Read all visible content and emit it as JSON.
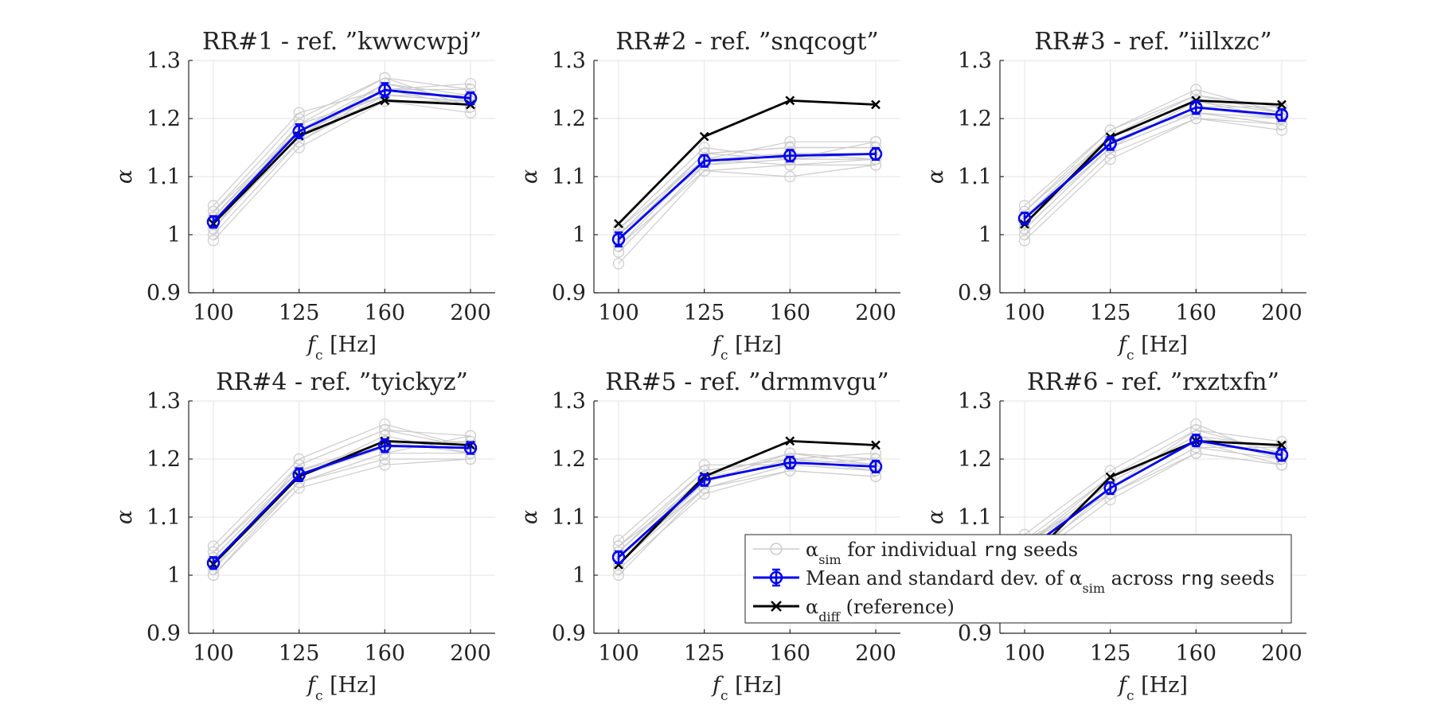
{
  "chart_data": [
    {
      "type": "line",
      "title": "RR#1 - ref. ”kwwcwpj”",
      "xlabel_var": "f",
      "xlabel_sub": "c",
      "xlabel_unit": " [Hz]",
      "ylabel": "α",
      "x": [
        100,
        125,
        160,
        200
      ],
      "ylim": [
        0.9,
        1.3
      ],
      "yticks": [
        "0.9",
        "1",
        "1.1",
        "1.2",
        "1.3"
      ],
      "xticks": [
        "100",
        "125",
        "160",
        "200"
      ],
      "mean": [
        1.022,
        1.178,
        1.249,
        1.235
      ],
      "std": [
        0.01,
        0.012,
        0.012,
        0.01
      ],
      "reference": [
        1.019,
        1.17,
        1.231,
        1.224
      ],
      "seeds": [
        [
          1.0,
          1.16,
          1.24,
          1.23
        ],
        [
          1.01,
          1.17,
          1.25,
          1.22
        ],
        [
          1.02,
          1.18,
          1.26,
          1.24
        ],
        [
          1.03,
          1.19,
          1.24,
          1.23
        ],
        [
          1.04,
          1.2,
          1.27,
          1.25
        ],
        [
          1.05,
          1.21,
          1.25,
          1.26
        ],
        [
          0.99,
          1.15,
          1.23,
          1.21
        ],
        [
          1.02,
          1.17,
          1.26,
          1.23
        ],
        [
          1.03,
          1.18,
          1.24,
          1.24
        ],
        [
          1.01,
          1.19,
          1.27,
          1.22
        ],
        [
          1.02,
          1.16,
          1.25,
          1.25
        ],
        [
          1.04,
          1.18,
          1.23,
          1.23
        ]
      ]
    },
    {
      "type": "line",
      "title": "RR#2 - ref. ”snqcogt”",
      "xlabel_var": "f",
      "xlabel_sub": "c",
      "xlabel_unit": " [Hz]",
      "ylabel": "α",
      "x": [
        100,
        125,
        160,
        200
      ],
      "ylim": [
        0.9,
        1.3
      ],
      "yticks": [
        "0.9",
        "1",
        "1.1",
        "1.2",
        "1.3"
      ],
      "xticks": [
        "100",
        "125",
        "160",
        "200"
      ],
      "mean": [
        0.992,
        1.127,
        1.136,
        1.139
      ],
      "std": [
        0.012,
        0.01,
        0.01,
        0.01
      ],
      "reference": [
        1.019,
        1.169,
        1.231,
        1.224
      ],
      "seeds": [
        [
          0.95,
          1.11,
          1.1,
          1.12
        ],
        [
          0.97,
          1.12,
          1.13,
          1.13
        ],
        [
          0.99,
          1.13,
          1.14,
          1.14
        ],
        [
          1.0,
          1.14,
          1.15,
          1.15
        ],
        [
          1.01,
          1.13,
          1.16,
          1.16
        ],
        [
          0.98,
          1.11,
          1.12,
          1.13
        ],
        [
          1.0,
          1.12,
          1.14,
          1.14
        ],
        [
          0.99,
          1.14,
          1.15,
          1.15
        ],
        [
          1.01,
          1.15,
          1.13,
          1.16
        ],
        [
          0.98,
          1.13,
          1.12,
          1.12
        ],
        [
          0.97,
          1.12,
          1.14,
          1.13
        ],
        [
          1.0,
          1.14,
          1.13,
          1.14
        ]
      ]
    },
    {
      "type": "line",
      "title": "RR#3 - ref. ”iillxzc”",
      "xlabel_var": "f",
      "xlabel_sub": "c",
      "xlabel_unit": " [Hz]",
      "ylabel": "α",
      "x": [
        100,
        125,
        160,
        200
      ],
      "ylim": [
        0.9,
        1.3
      ],
      "yticks": [
        "0.9",
        "1",
        "1.1",
        "1.2",
        "1.3"
      ],
      "xticks": [
        "100",
        "125",
        "160",
        "200"
      ],
      "mean": [
        1.028,
        1.157,
        1.219,
        1.206
      ],
      "std": [
        0.01,
        0.011,
        0.011,
        0.01
      ],
      "reference": [
        1.018,
        1.168,
        1.231,
        1.224
      ],
      "seeds": [
        [
          1.0,
          1.14,
          1.2,
          1.18
        ],
        [
          1.01,
          1.15,
          1.21,
          1.19
        ],
        [
          1.02,
          1.16,
          1.22,
          1.2
        ],
        [
          1.03,
          1.17,
          1.23,
          1.21
        ],
        [
          1.04,
          1.18,
          1.24,
          1.22
        ],
        [
          1.05,
          1.18,
          1.25,
          1.21
        ],
        [
          0.99,
          1.13,
          1.2,
          1.19
        ],
        [
          1.02,
          1.15,
          1.21,
          1.2
        ],
        [
          1.03,
          1.16,
          1.22,
          1.22
        ],
        [
          1.04,
          1.17,
          1.24,
          1.21
        ],
        [
          1.01,
          1.15,
          1.23,
          1.2
        ],
        [
          1.03,
          1.17,
          1.21,
          1.19
        ]
      ]
    },
    {
      "type": "line",
      "title": "RR#4 - ref. ”tyickyz”",
      "xlabel_var": "f",
      "xlabel_sub": "c",
      "xlabel_unit": " [Hz]",
      "ylabel": "α",
      "x": [
        100,
        125,
        160,
        200
      ],
      "ylim": [
        0.9,
        1.3
      ],
      "yticks": [
        "0.9",
        "1",
        "1.1",
        "1.2",
        "1.3"
      ],
      "xticks": [
        "100",
        "125",
        "160",
        "200"
      ],
      "mean": [
        1.021,
        1.173,
        1.223,
        1.219
      ],
      "std": [
        0.01,
        0.011,
        0.011,
        0.01
      ],
      "reference": [
        1.019,
        1.17,
        1.231,
        1.224
      ],
      "seeds": [
        [
          1.0,
          1.15,
          1.19,
          1.2
        ],
        [
          1.01,
          1.16,
          1.21,
          1.21
        ],
        [
          1.02,
          1.17,
          1.22,
          1.22
        ],
        [
          1.03,
          1.18,
          1.23,
          1.23
        ],
        [
          1.04,
          1.19,
          1.25,
          1.24
        ],
        [
          1.05,
          1.2,
          1.26,
          1.22
        ],
        [
          1.0,
          1.16,
          1.2,
          1.2
        ],
        [
          1.02,
          1.17,
          1.24,
          1.21
        ],
        [
          1.03,
          1.18,
          1.22,
          1.23
        ],
        [
          1.01,
          1.19,
          1.25,
          1.22
        ],
        [
          1.02,
          1.16,
          1.21,
          1.24
        ],
        [
          1.04,
          1.18,
          1.23,
          1.21
        ]
      ]
    },
    {
      "type": "line",
      "title": "RR#5 - ref. ”drmmvgu”",
      "xlabel_var": "f",
      "xlabel_sub": "c",
      "xlabel_unit": " [Hz]",
      "ylabel": "α",
      "x": [
        100,
        125,
        160,
        200
      ],
      "ylim": [
        0.9,
        1.3
      ],
      "yticks": [
        "0.9",
        "1",
        "1.1",
        "1.2",
        "1.3"
      ],
      "xticks": [
        "100",
        "125",
        "160",
        "200"
      ],
      "mean": [
        1.031,
        1.164,
        1.194,
        1.187
      ],
      "std": [
        0.01,
        0.01,
        0.01,
        0.01
      ],
      "reference": [
        1.018,
        1.17,
        1.231,
        1.224
      ],
      "seeds": [
        [
          1.01,
          1.14,
          1.18,
          1.17
        ],
        [
          1.02,
          1.15,
          1.19,
          1.18
        ],
        [
          1.03,
          1.16,
          1.2,
          1.19
        ],
        [
          1.04,
          1.17,
          1.21,
          1.2
        ],
        [
          1.05,
          1.18,
          1.2,
          1.21
        ],
        [
          1.06,
          1.19,
          1.19,
          1.18
        ],
        [
          1.0,
          1.15,
          1.18,
          1.17
        ],
        [
          1.02,
          1.16,
          1.21,
          1.19
        ],
        [
          1.03,
          1.17,
          1.19,
          1.2
        ],
        [
          1.04,
          1.18,
          1.2,
          1.18
        ],
        [
          1.05,
          1.16,
          1.21,
          1.19
        ],
        [
          1.03,
          1.15,
          1.19,
          1.18
        ]
      ]
    },
    {
      "type": "line",
      "title": "RR#6 - ref. ”rxztxfn”",
      "xlabel_var": "f",
      "xlabel_sub": "c",
      "xlabel_unit": " [Hz]",
      "ylabel": "α",
      "x": [
        100,
        125,
        160,
        200
      ],
      "ylim": [
        0.9,
        1.3
      ],
      "yticks": [
        "0.9",
        "1",
        "1.1",
        "1.2",
        "1.3"
      ],
      "xticks": [
        "100",
        "125",
        "160",
        "200"
      ],
      "mean": [
        1.04,
        1.15,
        1.232,
        1.207
      ],
      "std": [
        0.01,
        0.01,
        0.01,
        0.01
      ],
      "reference": [
        1.02,
        1.169,
        1.231,
        1.224
      ],
      "seeds": [
        [
          1.02,
          1.13,
          1.21,
          1.19
        ],
        [
          1.03,
          1.14,
          1.22,
          1.2
        ],
        [
          1.04,
          1.15,
          1.23,
          1.21
        ],
        [
          1.05,
          1.16,
          1.24,
          1.22
        ],
        [
          1.06,
          1.17,
          1.25,
          1.23
        ],
        [
          1.07,
          1.18,
          1.26,
          1.2
        ],
        [
          1.03,
          1.14,
          1.21,
          1.19
        ],
        [
          1.05,
          1.15,
          1.23,
          1.21
        ],
        [
          1.04,
          1.16,
          1.24,
          1.2
        ],
        [
          1.06,
          1.14,
          1.22,
          1.22
        ],
        [
          1.02,
          1.15,
          1.25,
          1.21
        ],
        [
          1.05,
          1.17,
          1.23,
          1.19
        ]
      ]
    }
  ],
  "legend": {
    "placement": "bottom-right",
    "entries": [
      {
        "sym": "α",
        "sub": "sim",
        "pre": " for individual ",
        "code": "rng",
        "post": " seeds"
      },
      {
        "sym": "",
        "sub": "",
        "pre": "Mean and standard dev. of ",
        "sym2": "α",
        "sub2": "sim",
        "mid": " across ",
        "code": "rng",
        "post": " seeds"
      },
      {
        "sym": "α",
        "sub": "diff",
        "pre": " (reference)",
        "code": "",
        "post": ""
      }
    ]
  },
  "colors": {
    "seeds": "#cccccc",
    "mean": "#0000ee",
    "reference": "#000000",
    "grid": "#e3e3e3",
    "axis": "#262626"
  }
}
